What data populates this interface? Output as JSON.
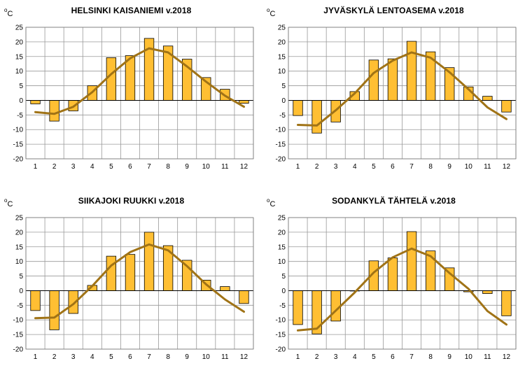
{
  "chart_data": [
    {
      "type": "bar",
      "title": "HELSINKI KAISANIEMI v.2018",
      "ylabel": "oC",
      "ylabel_base": "o",
      "ylabel_sub": "C",
      "ylim": [
        -20,
        25
      ],
      "ytick_step": 5,
      "categories": [
        "1",
        "2",
        "3",
        "4",
        "5",
        "6",
        "7",
        "8",
        "9",
        "10",
        "11",
        "12"
      ],
      "series": [
        {
          "values": [
            -1.2,
            -7.1,
            -3.6,
            5.0,
            14.6,
            15.3,
            21.2,
            18.6,
            14.1,
            7.8,
            3.8,
            -1.0
          ]
        },
        {
          "values": [
            -4.0,
            -4.6,
            -2.2,
            2.8,
            9.0,
            14.4,
            17.8,
            16.4,
            11.6,
            6.4,
            1.6,
            -2.2
          ]
        }
      ],
      "colors": {
        "bar": "#ffbf33",
        "bar_edge": "#000000",
        "line": "#a07316",
        "grid": "#999999"
      }
    },
    {
      "type": "bar",
      "title": "JYVÄSKYLÄ LENTOASEMA v.2018",
      "ylabel": "oC",
      "ylabel_base": "o",
      "ylabel_sub": "C",
      "ylim": [
        -20,
        25
      ],
      "ytick_step": 5,
      "categories": [
        "1",
        "2",
        "3",
        "4",
        "5",
        "6",
        "7",
        "8",
        "9",
        "10",
        "11",
        "12"
      ],
      "series": [
        {
          "values": [
            -5.2,
            -11.2,
            -7.4,
            3.0,
            13.8,
            14.2,
            20.2,
            16.6,
            11.2,
            4.6,
            1.4,
            -4.0
          ]
        },
        {
          "values": [
            -8.4,
            -8.6,
            -3.4,
            2.4,
            9.4,
            13.6,
            16.4,
            14.6,
            9.6,
            3.8,
            -2.4,
            -6.4
          ]
        }
      ],
      "colors": {
        "bar": "#ffbf33",
        "bar_edge": "#000000",
        "line": "#a07316",
        "grid": "#999999"
      }
    },
    {
      "type": "bar",
      "title": "SIIKAJOKI RUUKKI v.2018",
      "ylabel": "oC",
      "ylabel_base": "o",
      "ylabel_sub": "C",
      "ylim": [
        -20,
        25
      ],
      "ytick_step": 5,
      "categories": [
        "1",
        "2",
        "3",
        "4",
        "5",
        "6",
        "7",
        "8",
        "9",
        "10",
        "11",
        "12"
      ],
      "series": [
        {
          "values": [
            -6.8,
            -13.4,
            -7.8,
            1.8,
            11.8,
            12.4,
            20.0,
            15.4,
            10.4,
            3.6,
            1.4,
            -4.4
          ]
        },
        {
          "values": [
            -9.4,
            -9.2,
            -4.6,
            1.6,
            8.6,
            13.2,
            15.8,
            13.8,
            8.4,
            2.2,
            -3.0,
            -7.2
          ]
        }
      ],
      "colors": {
        "bar": "#ffbf33",
        "bar_edge": "#000000",
        "line": "#a07316",
        "grid": "#999999"
      }
    },
    {
      "type": "bar",
      "title": "SODANKYLÄ TÄHTELÄ v.2018",
      "ylabel": "oC",
      "ylabel_base": "o",
      "ylabel_sub": "C",
      "ylim": [
        -20,
        25
      ],
      "ytick_step": 5,
      "categories": [
        "1",
        "2",
        "3",
        "4",
        "5",
        "6",
        "7",
        "8",
        "9",
        "10",
        "11",
        "12"
      ],
      "series": [
        {
          "values": [
            -11.6,
            -14.8,
            -10.4,
            0.0,
            10.2,
            11.2,
            20.2,
            13.6,
            7.8,
            -0.4,
            -1.0,
            -8.6
          ]
        },
        {
          "values": [
            -13.6,
            -13.0,
            -6.8,
            -0.6,
            6.2,
            11.4,
            14.4,
            11.8,
            6.0,
            0.6,
            -7.0,
            -11.6
          ]
        }
      ],
      "colors": {
        "bar": "#ffbf33",
        "bar_edge": "#000000",
        "line": "#a07316",
        "grid": "#999999"
      }
    }
  ]
}
